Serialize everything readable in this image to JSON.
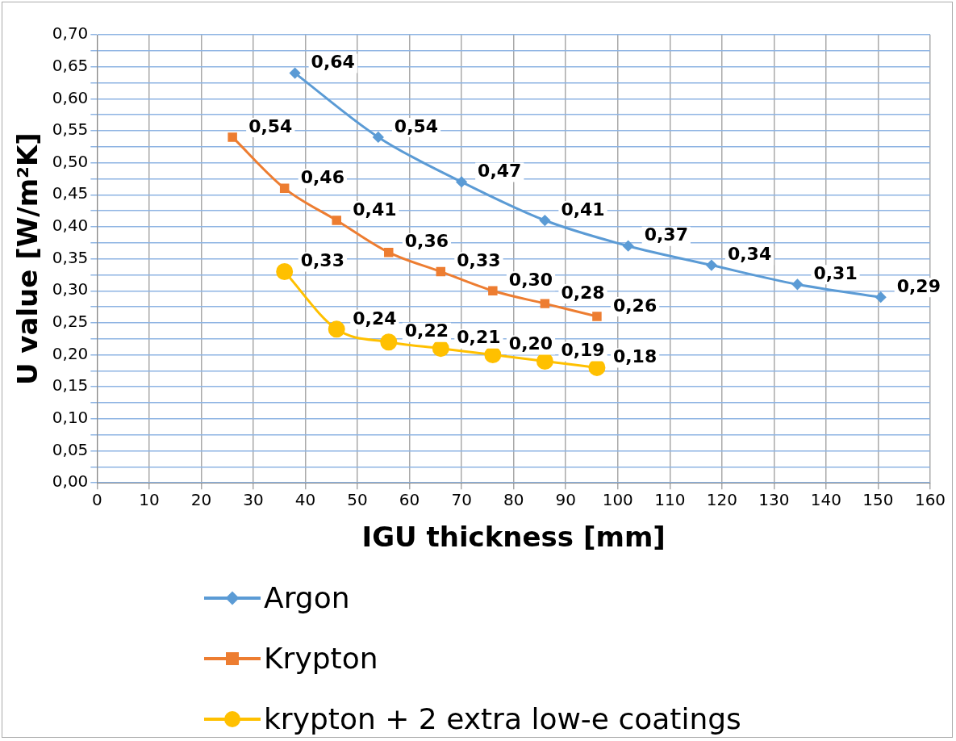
{
  "chart_data": {
    "type": "line",
    "xlabel": "IGU thickness [mm]",
    "ylabel": "U value [W/m²K]",
    "xlim": [
      0,
      160
    ],
    "xticks": [
      0,
      10,
      20,
      30,
      40,
      50,
      60,
      70,
      80,
      90,
      100,
      110,
      120,
      130,
      140,
      150,
      160
    ],
    "ylim": [
      0,
      0.7
    ],
    "yticks": [
      {
        "value": 0,
        "label": "0,00"
      },
      {
        "value": 0.025,
        "label": null
      },
      {
        "value": 0.05,
        "label": "0,05"
      },
      {
        "value": 0.075,
        "label": null
      },
      {
        "value": 0.1,
        "label": "0,10"
      },
      {
        "value": 0.125,
        "label": null
      },
      {
        "value": 0.15,
        "label": "0,15"
      },
      {
        "value": 0.175,
        "label": null
      },
      {
        "value": 0.2,
        "label": "0,20"
      },
      {
        "value": 0.225,
        "label": null
      },
      {
        "value": 0.25,
        "label": "0,25"
      },
      {
        "value": 0.275,
        "label": null
      },
      {
        "value": 0.3,
        "label": "0,30"
      },
      {
        "value": 0.325,
        "label": null
      },
      {
        "value": 0.35,
        "label": "0,35"
      },
      {
        "value": 0.375,
        "label": null
      },
      {
        "value": 0.4,
        "label": "0,40"
      },
      {
        "value": 0.425,
        "label": null
      },
      {
        "value": 0.45,
        "label": "0,45"
      },
      {
        "value": 0.475,
        "label": null
      },
      {
        "value": 0.5,
        "label": "0,50"
      },
      {
        "value": 0.525,
        "label": null
      },
      {
        "value": 0.55,
        "label": "0,55"
      },
      {
        "value": 0.575,
        "label": null
      },
      {
        "value": 0.6,
        "label": "0,60"
      },
      {
        "value": 0.625,
        "label": null
      },
      {
        "value": 0.65,
        "label": "0,65"
      },
      {
        "value": 0.675,
        "label": null
      },
      {
        "value": 0.7,
        "label": "0,70"
      }
    ],
    "grid": true,
    "legend": "bottom",
    "line_style": "solid",
    "series": [
      {
        "name": "Argon",
        "color": "#5b9bd5",
        "marker": "diamond",
        "x": [
          38,
          54,
          70,
          86,
          102,
          118,
          134.5,
          150.5
        ],
        "values": [
          0.64,
          0.54,
          0.47,
          0.41,
          0.37,
          0.34,
          0.31,
          0.29
        ],
        "value_labels": [
          "0,64",
          "0,54",
          "0,47",
          "0,41",
          "0,37",
          "0,34",
          "0,31",
          "0,29"
        ]
      },
      {
        "name": "Krypton",
        "color": "#ed7d31",
        "marker": "square",
        "x": [
          26,
          36,
          46,
          56,
          66,
          76,
          86,
          96
        ],
        "values": [
          0.54,
          0.46,
          0.41,
          0.36,
          0.33,
          0.3,
          0.28,
          0.26
        ],
        "value_labels": [
          "0,54",
          "0,46",
          "0,41",
          "0,36",
          "0,33",
          "0,30",
          "0,28",
          "0,26"
        ]
      },
      {
        "name": "krypton + 2 extra low-e coatings",
        "color": "#ffc000",
        "marker": "circle",
        "x": [
          36,
          46,
          56,
          66,
          76,
          86,
          96
        ],
        "values": [
          0.33,
          0.24,
          0.22,
          0.21,
          0.2,
          0.19,
          0.18
        ],
        "value_labels": [
          "0,33",
          "0,24",
          "0,22",
          "0,21",
          "0,20",
          "0,19",
          "0,18"
        ]
      }
    ]
  }
}
